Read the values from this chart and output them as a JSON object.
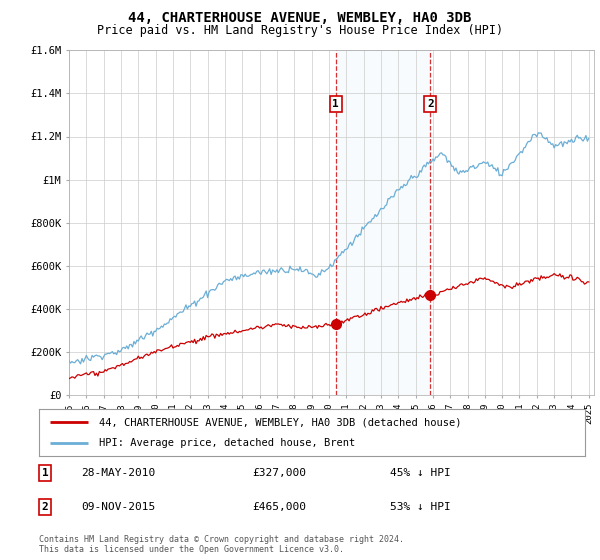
{
  "title": "44, CHARTERHOUSE AVENUE, WEMBLEY, HA0 3DB",
  "subtitle": "Price paid vs. HM Land Registry's House Price Index (HPI)",
  "hpi_color": "#6baed6",
  "price_color": "#cc0000",
  "legend_line1": "44, CHARTERHOUSE AVENUE, WEMBLEY, HA0 3DB (detached house)",
  "legend_line2": "HPI: Average price, detached house, Brent",
  "table": [
    {
      "num": "1",
      "date": "28-MAY-2010",
      "price": "£327,000",
      "pct": "45% ↓ HPI"
    },
    {
      "num": "2",
      "date": "09-NOV-2015",
      "price": "£465,000",
      "pct": "53% ↓ HPI"
    }
  ],
  "footnote": "Contains HM Land Registry data © Crown copyright and database right 2024.\nThis data is licensed under the Open Government Licence v3.0.",
  "ylim": [
    0,
    1600000
  ],
  "yticks": [
    0,
    200000,
    400000,
    600000,
    800000,
    1000000,
    1200000,
    1400000,
    1600000
  ],
  "ytick_labels": [
    "£0",
    "£200K",
    "£400K",
    "£600K",
    "£800K",
    "£1M",
    "£1.2M",
    "£1.4M",
    "£1.6M"
  ],
  "sale1_year": 2010.4,
  "sale2_year": 2015.85,
  "sale1_price": 327000,
  "sale2_price": 465000,
  "background_color": "#ffffff",
  "grid_color": "#cccccc",
  "highlight_color": "#daeaf8"
}
